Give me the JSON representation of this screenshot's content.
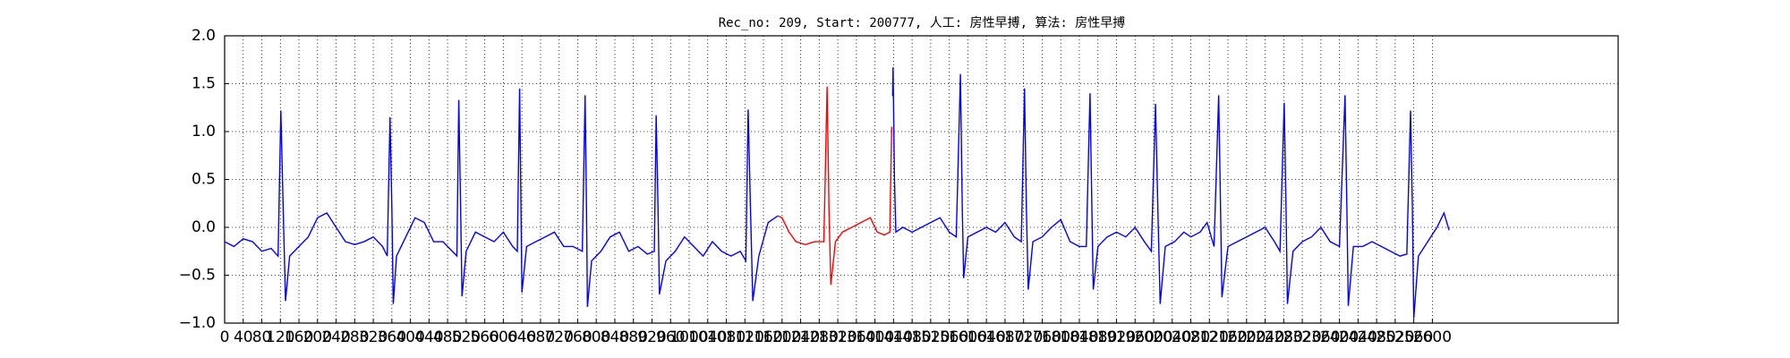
{
  "chart_data": {
    "type": "line",
    "title": "Rec_no: 209, Start: 200777, 人工: 房性早搏, 算法: 房性早搏",
    "xlim": [
      0,
      3000
    ],
    "xticks": [
      0,
      40,
      80,
      120,
      160,
      200,
      240,
      280,
      320,
      360,
      400,
      440,
      480,
      520,
      560,
      600,
      640,
      680,
      720,
      760,
      800,
      840,
      880,
      920,
      960,
      1000,
      1040,
      1080,
      1120,
      1160,
      1200,
      1240,
      1280,
      1320,
      1360,
      1400,
      1440,
      1480,
      1520,
      1560,
      1600,
      1640,
      1680,
      1720,
      1760,
      1800,
      1840,
      1880,
      1920,
      1960,
      2000,
      2040,
      2080,
      2120,
      2160,
      2200,
      2240,
      2280,
      2320,
      2360,
      2400,
      2440,
      2480,
      2520,
      2560,
      2600
    ],
    "ylim": [
      -1,
      2
    ],
    "yticks": [
      {
        "value": -1,
        "label": "−1.0"
      },
      {
        "value": -0.5,
        "label": "−0.5"
      },
      {
        "value": 0,
        "label": "0.0"
      },
      {
        "value": 0.5,
        "label": "0.5"
      },
      {
        "value": 1,
        "label": "1.0"
      },
      {
        "value": 1.5,
        "label": "1.5"
      },
      {
        "value": 2,
        "label": "2.0"
      }
    ],
    "grid": true,
    "series": [
      {
        "color": "#0000ff",
        "x": [
          0,
          20,
          40,
          60,
          80,
          100,
          115,
          121,
          126,
          131,
          140,
          160,
          180,
          200,
          220,
          240,
          260,
          280,
          300,
          320,
          340,
          350,
          356,
          360,
          363,
          370,
          390,
          410,
          430,
          450,
          470,
          490,
          500,
          504,
          508,
          511,
          520,
          540,
          560,
          580,
          600,
          620,
          630,
          635,
          638,
          640,
          650,
          670,
          690,
          710,
          730,
          750,
          770,
          776,
          779,
          781,
          790,
          810,
          830,
          850,
          870,
          890,
          910,
          925,
          929,
          933,
          936,
          950,
          970,
          990,
          1010,
          1030,
          1050,
          1070,
          1090,
          1110,
          1122,
          1127,
          1132,
          1137,
          1150,
          1170,
          1185,
          1191
        ],
        "values": [
          -0.15,
          -0.2,
          -0.12,
          -0.15,
          -0.25,
          -0.22,
          -0.3,
          1.22,
          0.2,
          -0.77,
          -0.3,
          -0.2,
          -0.1,
          0.1,
          0.15,
          0.0,
          -0.15,
          -0.18,
          -0.15,
          -0.1,
          -0.2,
          -0.3,
          1.15,
          0.2,
          -0.8,
          -0.3,
          -0.1,
          0.1,
          0.05,
          -0.15,
          -0.15,
          -0.25,
          -0.3,
          1.33,
          0.2,
          -0.72,
          -0.25,
          -0.05,
          -0.1,
          -0.15,
          -0.05,
          -0.2,
          -0.25,
          1.45,
          0.2,
          -0.68,
          -0.2,
          -0.15,
          -0.1,
          -0.05,
          -0.2,
          -0.2,
          -0.25,
          1.38,
          0.2,
          -0.83,
          -0.35,
          -0.25,
          -0.1,
          -0.05,
          -0.25,
          -0.2,
          -0.28,
          -0.25,
          1.17,
          0.2,
          -0.7,
          -0.35,
          -0.25,
          -0.1,
          -0.2,
          -0.3,
          -0.15,
          -0.25,
          -0.3,
          -0.25,
          -0.35,
          1.23,
          0.2,
          -0.77,
          -0.3,
          0.05,
          0.1,
          0.12
        ]
      },
      {
        "color": "#ff0000",
        "x": [
          1191,
          1200,
          1215,
          1230,
          1250,
          1270,
          1290,
          1297,
          1301,
          1305,
          1315,
          1330,
          1350,
          1370,
          1390,
          1405,
          1420,
          1432,
          1436
        ],
        "values": [
          0.12,
          0.1,
          -0.05,
          -0.15,
          -0.18,
          -0.15,
          -0.15,
          1.47,
          0.2,
          -0.6,
          -0.15,
          -0.05,
          0.0,
          0.05,
          0.1,
          -0.05,
          -0.08,
          -0.05,
          1.05
        ]
      },
      {
        "color": "#0000ff",
        "x": [
          1438,
          1439,
          1442,
          1445,
          1460,
          1480,
          1500,
          1520,
          1540,
          1560,
          1575,
          1584,
          1588,
          1591,
          1600,
          1620,
          1640,
          1660,
          1680,
          1700,
          1715,
          1722,
          1726,
          1730,
          1740,
          1760,
          1780,
          1800,
          1820,
          1840,
          1855,
          1863,
          1867,
          1870,
          1880,
          1900,
          1920,
          1940,
          1960,
          1980,
          1995,
          2004,
          2009,
          2014,
          2025,
          2045,
          2065,
          2080,
          2100,
          2115,
          2130,
          2140,
          2144,
          2147,
          2160,
          2180,
          2200,
          2220,
          2240,
          2260,
          2272,
          2281,
          2285,
          2288,
          2300,
          2320,
          2340,
          2360,
          2380,
          2400,
          2412,
          2416,
          2419,
          2430,
          2450,
          2470,
          2490,
          2510,
          2530,
          2545,
          2553,
          2557,
          2560,
          2570,
          2590,
          2610,
          2625,
          2636
        ],
        "values": [
          1.37,
          1.67,
          0.5,
          -0.05,
          0.0,
          -0.05,
          0.0,
          0.05,
          0.1,
          -0.05,
          -0.1,
          1.6,
          0.2,
          -0.53,
          -0.1,
          -0.05,
          0.0,
          -0.05,
          0.05,
          -0.1,
          -0.15,
          1.45,
          0.2,
          -0.65,
          -0.15,
          -0.1,
          0.0,
          0.08,
          -0.15,
          -0.2,
          -0.2,
          1.4,
          0.2,
          -0.65,
          -0.2,
          -0.1,
          -0.05,
          -0.1,
          0.0,
          -0.15,
          -0.25,
          1.29,
          0.2,
          -0.8,
          -0.2,
          -0.15,
          -0.05,
          -0.1,
          -0.05,
          0.05,
          -0.2,
          1.38,
          0.2,
          -0.73,
          -0.2,
          -0.15,
          -0.1,
          -0.05,
          0.0,
          -0.15,
          -0.25,
          1.3,
          0.2,
          -0.8,
          -0.25,
          -0.15,
          -0.1,
          0.0,
          -0.15,
          -0.2,
          1.38,
          0.2,
          -0.82,
          -0.2,
          -0.2,
          -0.15,
          -0.2,
          -0.25,
          -0.3,
          -0.28,
          1.22,
          0.2,
          -0.95,
          -0.3,
          -0.15,
          0.0,
          0.15,
          -0.03
        ]
      }
    ]
  }
}
